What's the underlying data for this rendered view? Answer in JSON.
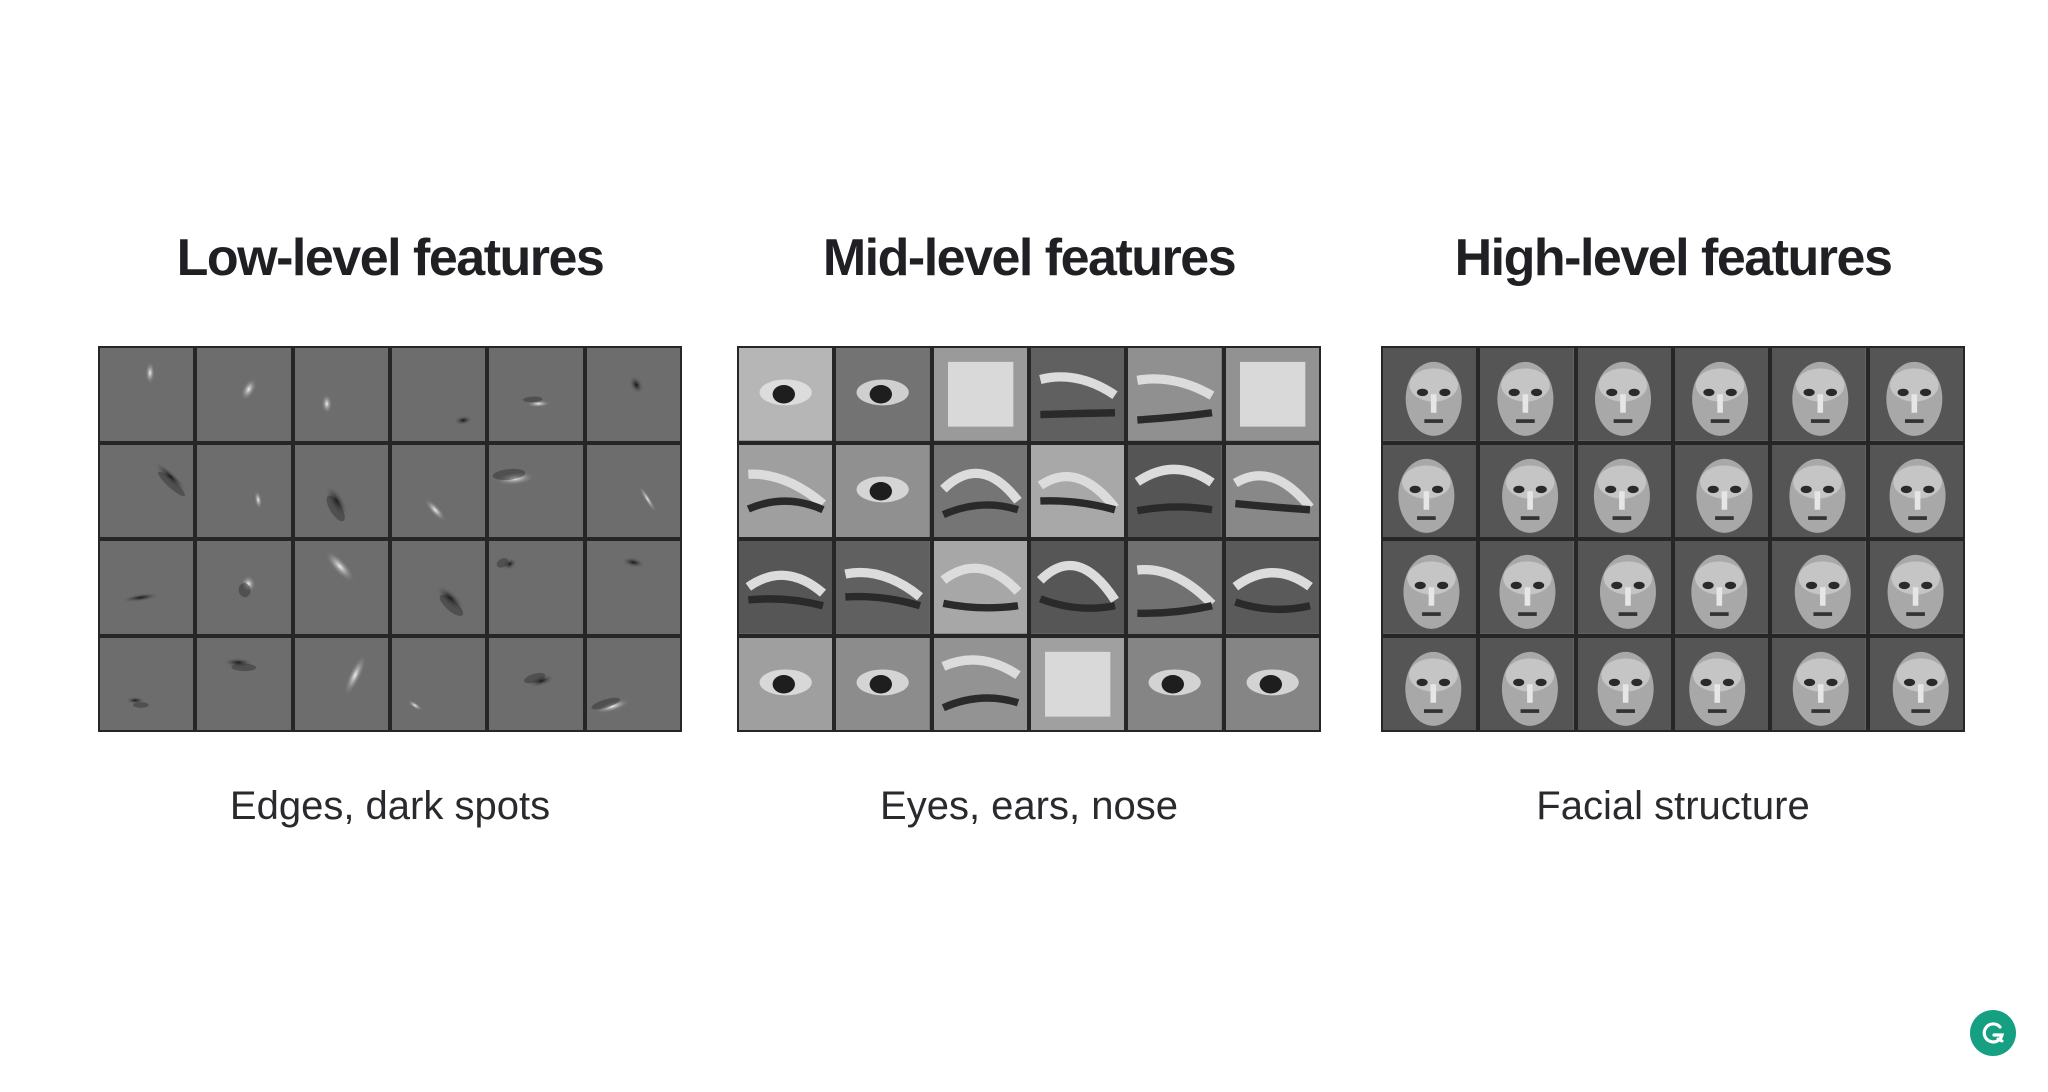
{
  "panels": [
    {
      "id": "low",
      "title": "Low-level features",
      "caption": "Edges, dark spots",
      "tile_kind": "edge"
    },
    {
      "id": "mid",
      "title": "Mid-level features",
      "caption": "Eyes, ears, nose",
      "tile_kind": "part"
    },
    {
      "id": "high",
      "title": "High-level features",
      "caption": "Facial structure",
      "tile_kind": "face"
    }
  ],
  "grid": {
    "rows": 4,
    "columns": 6
  },
  "colors": {
    "background": "#ffffff",
    "title_text": "#1f1f24",
    "caption_text": "#2a2a2e",
    "grid_border": "#262626",
    "tile_base": "#6d6d6d",
    "logo_bg": "#15a082"
  },
  "logo": {
    "icon": "grammarly-g-icon"
  }
}
